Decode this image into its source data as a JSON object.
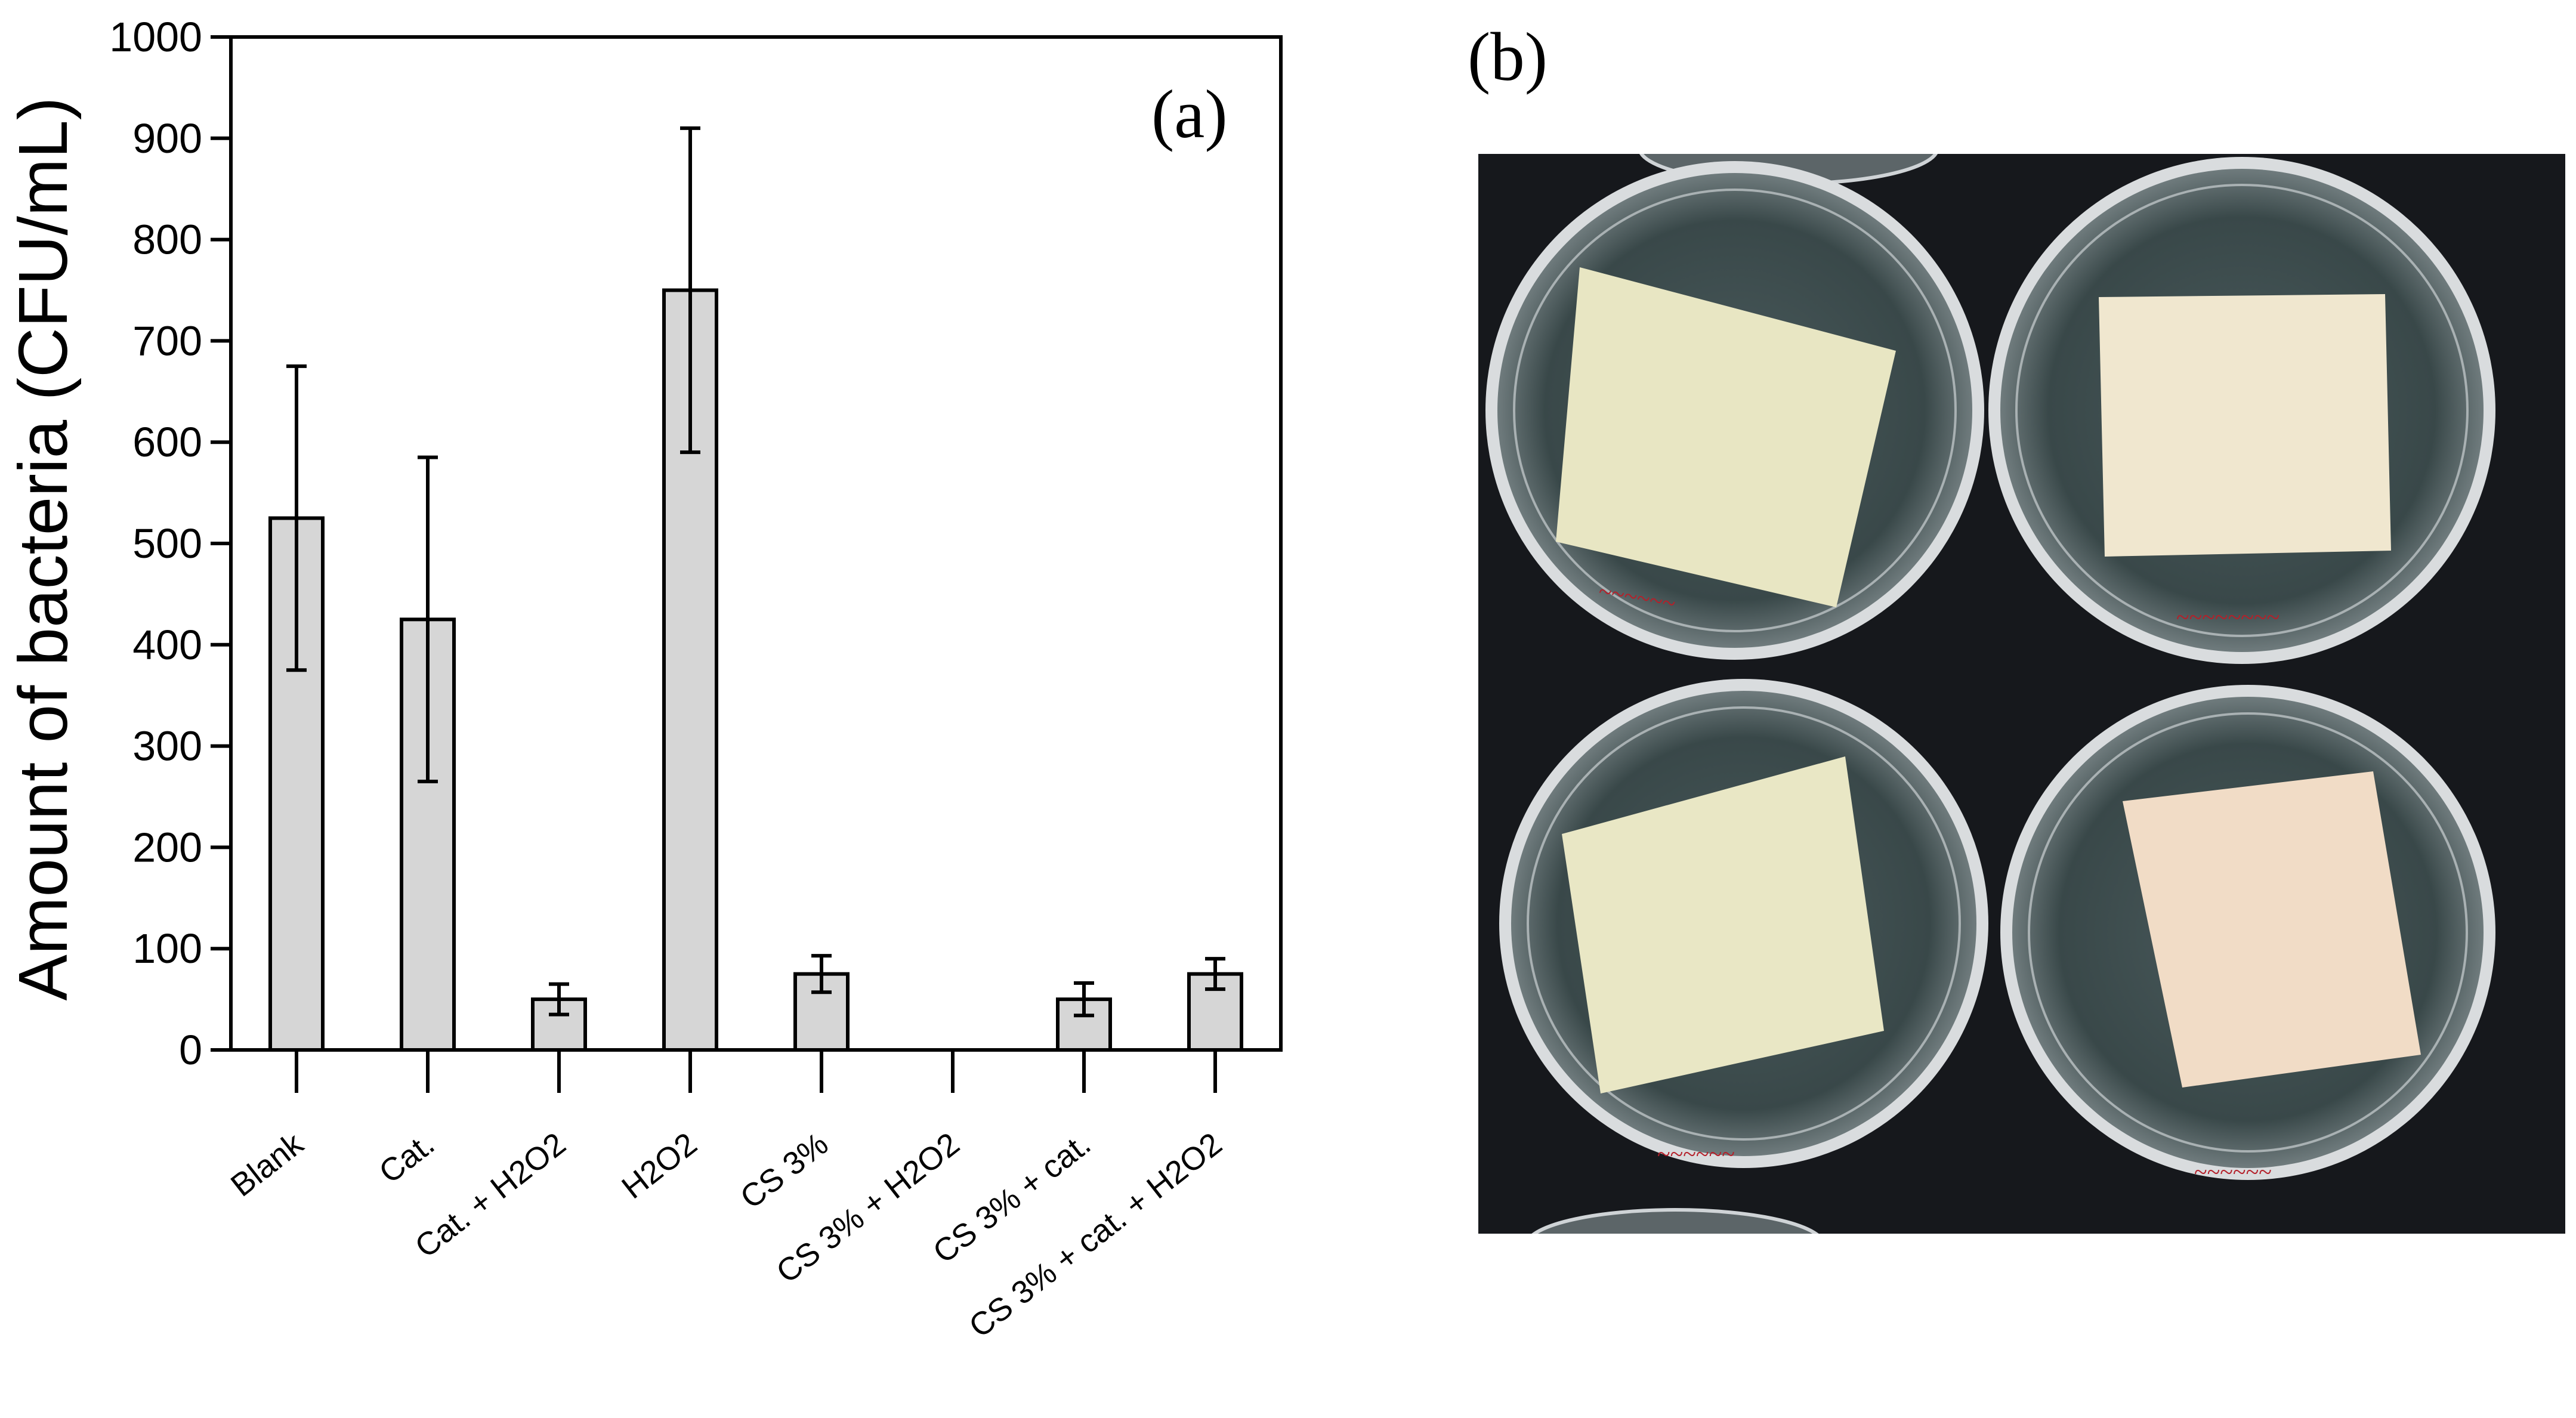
{
  "panel_a_label": "(a)",
  "panel_b_label": "(b)",
  "chart_data": {
    "type": "bar",
    "title": "",
    "xlabel": "",
    "ylabel": "Amount of bacteria (CFU/mL)",
    "ylim": [
      0,
      1000
    ],
    "yticks": [
      0,
      100,
      200,
      300,
      400,
      500,
      600,
      700,
      800,
      900,
      1000
    ],
    "categories": [
      "Blank",
      "Cat.",
      "Cat. + H2O2",
      "H2O2",
      "CS 3%",
      "CS 3% + H2O2",
      "CS 3% + cat.",
      "CS 3% + cat. + H2O2"
    ],
    "values": [
      525,
      425,
      50,
      750,
      75,
      0,
      50,
      75
    ],
    "errors": [
      150,
      160,
      15,
      160,
      18,
      0,
      16,
      15
    ],
    "bar_color": "#d6d6d6",
    "edge_color": "#000000",
    "grid": false,
    "legend": "none"
  },
  "photo": {
    "background_color": "#16181c",
    "dish_fill": "#3a4a4c",
    "rim_color": "#d9dcde",
    "sample_colors": [
      "#e8e6c3",
      "#f0e7cf",
      "#e9e7c5",
      "#f1dcc6"
    ],
    "marker_color": "#b4202a"
  }
}
